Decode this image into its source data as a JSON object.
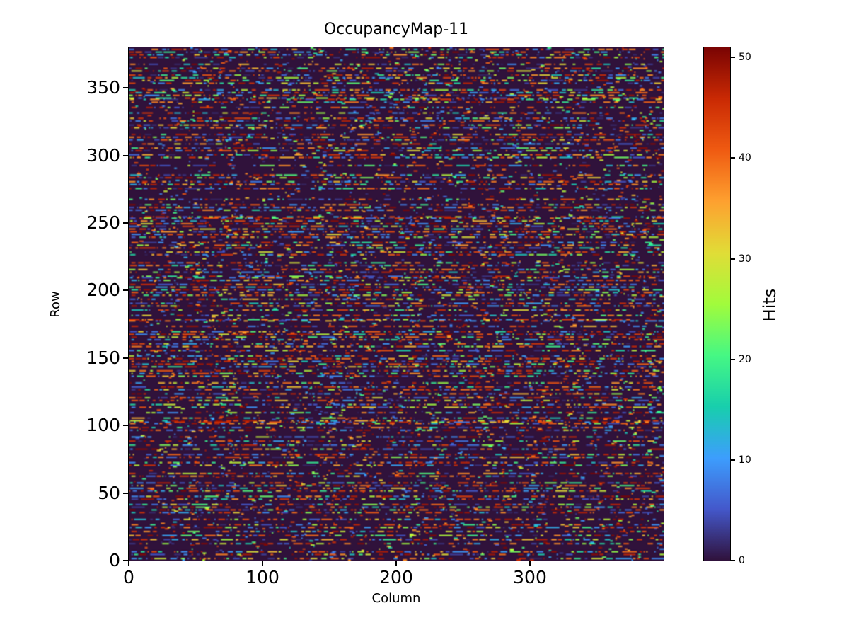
{
  "figure": {
    "title": "OccupancyMap-11",
    "background_color": "#ffffff"
  },
  "chart_data": {
    "type": "heatmap",
    "title": "OccupancyMap-11",
    "xlabel": "Column",
    "ylabel": "Row",
    "colorbar_label": "Hits",
    "x_range": [
      0,
      400
    ],
    "y_range": [
      0,
      380
    ],
    "value_range": [
      0,
      51
    ],
    "x_ticks": [
      0,
      100,
      200,
      300
    ],
    "y_ticks": [
      0,
      50,
      100,
      150,
      200,
      250,
      300,
      350
    ],
    "colorbar_ticks": [
      0,
      10,
      20,
      30,
      40,
      50
    ],
    "grid": {
      "cols": 400,
      "rows": 380
    },
    "legend_position": "right-colorbar",
    "grid_lines": false,
    "colormap": {
      "name": "turbo",
      "zero_color": "#30123b",
      "stops": [
        [
          0.0,
          "#30123b"
        ],
        [
          0.1,
          "#4458cb"
        ],
        [
          0.2,
          "#3d9efe"
        ],
        [
          0.3,
          "#18cfad"
        ],
        [
          0.4,
          "#46f884"
        ],
        [
          0.5,
          "#a2fc3c"
        ],
        [
          0.6,
          "#e1dd37"
        ],
        [
          0.7,
          "#fea130"
        ],
        [
          0.8,
          "#f05b12"
        ],
        [
          0.9,
          "#ca2a04"
        ],
        [
          1.0,
          "#7a0403"
        ]
      ]
    },
    "pattern": {
      "description": "random occupancy: horizontal multicolor hit dashes on dark zero-value background, roughly every third row active",
      "seed": 11,
      "active_row_prob": 0.5,
      "prob_after_active": 0.05,
      "sparse_row_density": 0.05,
      "dash_len_min": 1,
      "dash_len_max": 5,
      "gap_len_min": 1,
      "gap_len_max": 3,
      "value_mix": {
        "high_prob": 0.42,
        "low_prob": 0.3,
        "high_range": [
          36,
          51
        ],
        "low_range": [
          1,
          12
        ],
        "mid_range": [
          13,
          35
        ]
      }
    }
  },
  "layout_labels": {
    "x_tick_prefix": "",
    "y_tick_prefix": ""
  }
}
